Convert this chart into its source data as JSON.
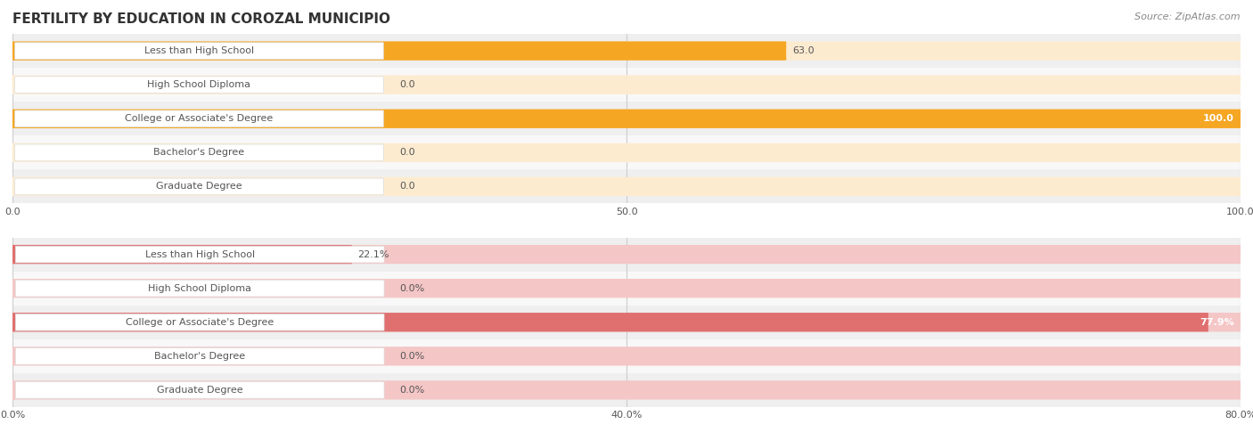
{
  "title": "FERTILITY BY EDUCATION IN COROZAL MUNICIPIO",
  "source": "Source: ZipAtlas.com",
  "top_chart": {
    "categories": [
      "Less than High School",
      "High School Diploma",
      "College or Associate's Degree",
      "Bachelor's Degree",
      "Graduate Degree"
    ],
    "values": [
      63.0,
      0.0,
      100.0,
      0.0,
      0.0
    ],
    "bar_color": "#F5A623",
    "label_bg_color": "#FDEBD0",
    "label_color": "#555555",
    "value_color": "#FFFFFF",
    "xlim": [
      0,
      100
    ],
    "xticks": [
      0.0,
      50.0,
      100.0
    ],
    "xtick_labels": [
      "0.0",
      "50.0",
      "100.0"
    ],
    "row_bg_colors": [
      "#EFEFEF",
      "#F8F8F8"
    ]
  },
  "bottom_chart": {
    "categories": [
      "Less than High School",
      "High School Diploma",
      "College or Associate's Degree",
      "Bachelor's Degree",
      "Graduate Degree"
    ],
    "values": [
      22.1,
      0.0,
      77.9,
      0.0,
      0.0
    ],
    "bar_color": "#E07070",
    "label_bg_color": "#F5C6C6",
    "label_color": "#555555",
    "value_color": "#FFFFFF",
    "xlim": [
      0,
      80
    ],
    "xticks": [
      0.0,
      40.0,
      80.0
    ],
    "xtick_labels": [
      "0.0%",
      "40.0%",
      "80.0%"
    ],
    "row_bg_colors": [
      "#EFEFEF",
      "#F8F8F8"
    ]
  },
  "fig_bg_color": "#FFFFFF",
  "title_fontsize": 11,
  "title_color": "#333333",
  "source_fontsize": 8,
  "source_color": "#888888",
  "label_fontsize": 8,
  "value_fontsize": 8
}
